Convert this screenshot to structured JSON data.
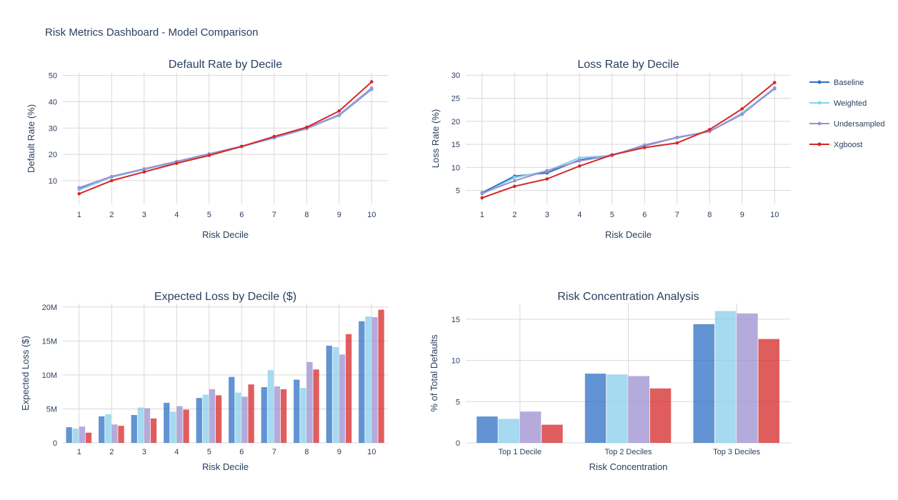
{
  "page": {
    "title": "Risk Metrics Dashboard - Model Comparison"
  },
  "colors": {
    "baseline": "#2e6fc4",
    "weighted": "#87ceeb",
    "undersampled": "#9b8fd0",
    "xgboost": "#d62728"
  },
  "legend": {
    "items": [
      {
        "key": "baseline",
        "label": "Baseline"
      },
      {
        "key": "weighted",
        "label": "Weighted"
      },
      {
        "key": "undersampled",
        "label": "Undersampled"
      },
      {
        "key": "xgboost",
        "label": "Xgboost"
      }
    ],
    "placement": "right"
  },
  "chart_data": [
    {
      "id": "default-rate",
      "type": "line",
      "title": "Default Rate by Decile",
      "xlabel": "Risk Decile",
      "ylabel": "Default Rate (%)",
      "x": [
        1,
        2,
        3,
        4,
        5,
        6,
        7,
        8,
        9,
        10
      ],
      "xticks": [
        "1",
        "2",
        "3",
        "4",
        "5",
        "6",
        "7",
        "8",
        "9",
        "10"
      ],
      "ylim": [
        1,
        51
      ],
      "yticks": [
        10,
        20,
        30,
        40,
        50
      ],
      "yticklabels": [
        "10",
        "20",
        "30",
        "40",
        "50"
      ],
      "series": [
        {
          "name": "Baseline",
          "key": "baseline",
          "values": [
            7.0,
            11.5,
            14.3,
            17.0,
            20.0,
            23.0,
            26.3,
            29.8,
            34.8,
            44.8
          ]
        },
        {
          "name": "Weighted",
          "key": "weighted",
          "values": [
            6.5,
            11.3,
            14.2,
            17.1,
            20.1,
            22.9,
            26.2,
            29.7,
            34.9,
            45.0
          ]
        },
        {
          "name": "Undersampled",
          "key": "undersampled",
          "values": [
            7.3,
            11.6,
            14.5,
            17.3,
            20.2,
            23.1,
            26.4,
            29.9,
            35.1,
            45.2
          ]
        },
        {
          "name": "Xgboost",
          "key": "xgboost",
          "values": [
            5.0,
            10.0,
            13.3,
            16.6,
            19.6,
            23.0,
            26.8,
            30.3,
            36.5,
            47.6
          ]
        }
      ]
    },
    {
      "id": "loss-rate",
      "type": "line",
      "title": "Loss Rate by Decile",
      "xlabel": "Risk Decile",
      "ylabel": "Loss Rate (%)",
      "x": [
        1,
        2,
        3,
        4,
        5,
        6,
        7,
        8,
        9,
        10
      ],
      "xticks": [
        "1",
        "2",
        "3",
        "4",
        "5",
        "6",
        "7",
        "8",
        "9",
        "10"
      ],
      "ylim": [
        2,
        30.5
      ],
      "yticks": [
        5,
        10,
        15,
        20,
        25,
        30
      ],
      "yticklabels": [
        "5",
        "10",
        "15",
        "20",
        "25",
        "30"
      ],
      "series": [
        {
          "name": "Baseline",
          "key": "baseline",
          "values": [
            4.5,
            8.1,
            8.8,
            11.6,
            12.7,
            14.7,
            16.5,
            17.8,
            21.6,
            27.1
          ]
        },
        {
          "name": "Weighted",
          "key": "weighted",
          "values": [
            4.2,
            7.8,
            9.2,
            12.1,
            12.6,
            14.9,
            16.4,
            17.8,
            21.8,
            27.2
          ]
        },
        {
          "name": "Undersampled",
          "key": "undersampled",
          "values": [
            4.4,
            7.1,
            9.3,
            11.4,
            12.6,
            14.8,
            16.5,
            17.8,
            21.5,
            27.2
          ]
        },
        {
          "name": "Xgboost",
          "key": "xgboost",
          "values": [
            3.4,
            5.9,
            7.5,
            10.3,
            12.7,
            14.3,
            15.3,
            18.2,
            22.7,
            28.4
          ]
        }
      ]
    },
    {
      "id": "expected-loss",
      "type": "bar",
      "title": "Expected Loss by Decile ($)",
      "xlabel": "Risk Decile",
      "ylabel": "Expected Loss ($)",
      "categories": [
        "1",
        "2",
        "3",
        "4",
        "5",
        "6",
        "7",
        "8",
        "9",
        "10"
      ],
      "ylim": [
        0,
        20500000
      ],
      "yticks": [
        0,
        5000000,
        10000000,
        15000000,
        20000000
      ],
      "yticklabels": [
        "0",
        "5M",
        "10M",
        "15M",
        "20M"
      ],
      "series": [
        {
          "name": "Baseline",
          "key": "baseline",
          "values": [
            2300000,
            3900000,
            4100000,
            5900000,
            6600000,
            9700000,
            8200000,
            9300000,
            14300000,
            17900000
          ]
        },
        {
          "name": "Weighted",
          "key": "weighted",
          "values": [
            2100000,
            4200000,
            5200000,
            4600000,
            7100000,
            7400000,
            10700000,
            8100000,
            14100000,
            18600000
          ]
        },
        {
          "name": "Undersampled",
          "key": "undersampled",
          "values": [
            2400000,
            2700000,
            5100000,
            5400000,
            7900000,
            6800000,
            8300000,
            11900000,
            13000000,
            18500000
          ]
        },
        {
          "name": "Xgboost",
          "key": "xgboost",
          "values": [
            1500000,
            2500000,
            3600000,
            4900000,
            7000000,
            8600000,
            7900000,
            10800000,
            16000000,
            19600000
          ]
        }
      ]
    },
    {
      "id": "risk-concentration",
      "type": "bar",
      "title": "Risk Concentration Analysis",
      "xlabel": "Risk Concentration",
      "ylabel": "% of Total Defaults",
      "categories": [
        "Top 1 Decile",
        "Top 2 Deciles",
        "Top 3 Deciles"
      ],
      "ylim": [
        0,
        16.9
      ],
      "yticks": [
        0,
        5,
        10,
        15
      ],
      "yticklabels": [
        "0",
        "5",
        "10",
        "15"
      ],
      "series": [
        {
          "name": "Baseline",
          "key": "baseline",
          "values": [
            3.2,
            8.4,
            14.4
          ]
        },
        {
          "name": "Weighted",
          "key": "weighted",
          "values": [
            2.9,
            8.3,
            16.0
          ]
        },
        {
          "name": "Undersampled",
          "key": "undersampled",
          "values": [
            3.8,
            8.1,
            15.7
          ]
        },
        {
          "name": "Xgboost",
          "key": "xgboost",
          "values": [
            2.2,
            6.6,
            12.6
          ]
        }
      ]
    }
  ]
}
